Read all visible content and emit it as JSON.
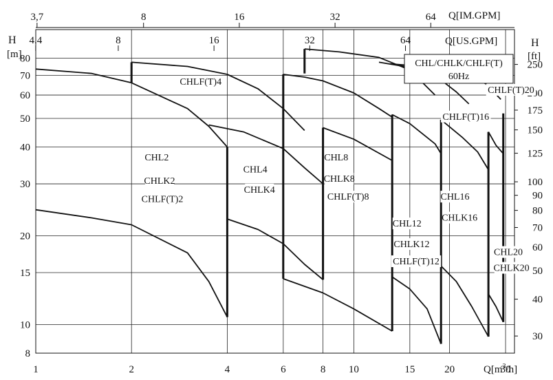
{
  "chart_data": {
    "type": "line",
    "title": "CHL/CHLK/CHLF(T)",
    "subtitle": "60Hz",
    "scale": "log-log",
    "grid": true,
    "x_bottom": {
      "label": "Q[m³/h]",
      "label_main": "Q[m",
      "label_sup": "3",
      "label_tail": "/h]",
      "ticks": [
        1,
        2,
        4,
        6,
        8,
        10,
        15,
        20,
        30
      ],
      "tick_labels": [
        "1",
        "2",
        "4",
        "6",
        "8",
        "10",
        "15",
        "20",
        "30"
      ]
    },
    "x_top_us": {
      "label": "Q[US.GPM]",
      "ticks": [
        4.4,
        8,
        16,
        32,
        64
      ],
      "tick_labels": [
        "4.4",
        "8",
        "16",
        "32",
        "64"
      ]
    },
    "x_top_im": {
      "label": "Q[IM.GPM]",
      "ticks": [
        3.7,
        8,
        16,
        32,
        64
      ],
      "tick_labels": [
        "3,7",
        "8",
        "16",
        "32",
        "64"
      ]
    },
    "y_left": {
      "label": "H",
      "unit": "[m]",
      "ylim": [
        8,
        100
      ],
      "ticks": [
        8,
        10,
        15,
        20,
        30,
        40,
        50,
        60,
        70,
        80
      ],
      "tick_labels": [
        "8",
        "10",
        "15",
        "20",
        "30",
        "40",
        "50",
        "60",
        "70",
        "80"
      ]
    },
    "y_right": {
      "label": "H",
      "unit": "[ft]",
      "ticks": [
        30,
        40,
        50,
        60,
        70,
        80,
        90,
        100,
        125,
        150,
        175,
        200,
        250
      ],
      "tick_labels": [
        "30",
        "40",
        "50",
        "60",
        "70",
        "80",
        "90",
        "100",
        "125",
        "150",
        "175",
        "200",
        "250"
      ]
    },
    "series": [
      {
        "curves": [
          [
            [
              1,
              24.5
            ],
            [
              1.5,
              23
            ],
            [
              2,
              21.8
            ],
            [
              3,
              17.5
            ],
            [
              3.5,
              14
            ],
            [
              4,
              10.6
            ]
          ],
          [
            [
              1,
              73.5
            ],
            [
              1.5,
              71
            ],
            [
              2,
              66
            ],
            [
              3,
              54
            ],
            [
              3.5,
              47
            ],
            [
              4,
              40
            ]
          ]
        ],
        "boundaries": [
          [
            [
              4,
              10.6
            ],
            [
              4,
              40
            ]
          ]
        ]
      },
      {
        "curves": [
          [
            [
              2,
              77.5
            ],
            [
              3,
              75
            ],
            [
              4,
              70.5
            ],
            [
              5,
              63
            ],
            [
              6,
              54
            ],
            [
              7,
              45.5
            ]
          ]
        ],
        "boundaries": [
          [
            [
              2,
              66
            ],
            [
              2,
              77.5
            ]
          ]
        ]
      },
      {
        "curves": [
          [
            [
              4,
              22.8
            ],
            [
              5,
              21
            ],
            [
              6,
              18.8
            ],
            [
              7,
              16
            ],
            [
              8,
              14.2
            ]
          ],
          [
            [
              3.5,
              47.5
            ],
            [
              4.5,
              45
            ],
            [
              6,
              39.5
            ],
            [
              7,
              34
            ],
            [
              8,
              30
            ]
          ]
        ],
        "boundaries": [
          [
            [
              8,
              14.2
            ],
            [
              8,
              46.5
            ]
          ]
        ]
      },
      {
        "curves": [
          [
            [
              6,
              70.5
            ],
            [
              7,
              69
            ],
            [
              8,
              67
            ],
            [
              10,
              61
            ],
            [
              12,
              54
            ],
            [
              13.2,
              50.5
            ]
          ],
          [
            [
              6,
              14.3
            ],
            [
              8,
              12.8
            ],
            [
              10,
              11.3
            ],
            [
              13.2,
              9.5
            ]
          ],
          [
            [
              8,
              46.5
            ],
            [
              10,
              42.5
            ],
            [
              13.2,
              36
            ]
          ]
        ],
        "boundaries": [
          [
            [
              6,
              14.3
            ],
            [
              6,
              70.5
            ]
          ],
          [
            [
              13.2,
              9.5
            ],
            [
              13.2,
              51.5
            ]
          ]
        ]
      },
      {
        "curves": [
          [
            [
              7,
              86
            ],
            [
              9,
              84
            ],
            [
              12,
              80.5
            ],
            [
              15,
              73
            ],
            [
              18,
              60
            ]
          ],
          [
            [
              13.2,
              14.5
            ],
            [
              15,
              13.2
            ],
            [
              17,
              11.3
            ],
            [
              18.8,
              8.6
            ]
          ],
          [
            [
              13.2,
              51.5
            ],
            [
              15,
              48
            ],
            [
              18,
              41
            ],
            [
              18.8,
              38
            ]
          ]
        ],
        "boundaries": [
          [
            [
              7,
              71
            ],
            [
              7,
              86
            ]
          ],
          [
            [
              18.8,
              8.6
            ],
            [
              18.8,
              49.5
            ]
          ]
        ]
      },
      {
        "curves": [
          [
            [
              12,
              77.5
            ],
            [
              15,
              74.5
            ],
            [
              18,
              70
            ],
            [
              21,
              61.5
            ],
            [
              23,
              56
            ]
          ],
          [
            [
              18.8,
              15.8
            ],
            [
              21,
              14
            ],
            [
              23.5,
              11.5
            ],
            [
              26.5,
              9.1
            ]
          ],
          [
            [
              18.8,
              49.5
            ],
            [
              22,
              43
            ],
            [
              24.5,
              38.5
            ],
            [
              26.5,
              33.5
            ]
          ]
        ],
        "boundaries": [
          [
            [
              26.5,
              9.1
            ],
            [
              26.5,
              45
            ]
          ]
        ]
      },
      {
        "curves": [
          [
            [
              13,
              76.5
            ],
            [
              18,
              74.5
            ],
            [
              22,
              71
            ],
            [
              26,
              65.5
            ],
            [
              29,
              58
            ]
          ],
          [
            [
              26.5,
              12.7
            ],
            [
              28,
              11.5
            ],
            [
              29.5,
              10.2
            ]
          ],
          [
            [
              26.5,
              45
            ],
            [
              28,
              40.5
            ],
            [
              29.5,
              38
            ]
          ]
        ],
        "boundaries": [
          [
            [
              29.5,
              10.2
            ],
            [
              29.5,
              52
            ]
          ]
        ]
      }
    ],
    "labels": [
      {
        "text": "CHLF(T)4",
        "x": 3.3,
        "y": 65
      },
      {
        "text": "CHL2",
        "x": 2.4,
        "y": 36
      },
      {
        "text": "CHLK2",
        "x": 2.45,
        "y": 30
      },
      {
        "text": "CHLF(T)2",
        "x": 2.5,
        "y": 26
      },
      {
        "text": "CHL4",
        "x": 4.9,
        "y": 32.8
      },
      {
        "text": "CHLK4",
        "x": 5.05,
        "y": 28
      },
      {
        "text": "CHL8",
        "x": 8.8,
        "y": 36
      },
      {
        "text": "CHLK8",
        "x": 9.0,
        "y": 30.5
      },
      {
        "text": "CHLF(T)8",
        "x": 9.6,
        "y": 26.5
      },
      {
        "text": "CHL12",
        "x": 14.7,
        "y": 21.5
      },
      {
        "text": "CHLK12",
        "x": 15.2,
        "y": 18.3
      },
      {
        "text": "CHLF(T)12",
        "x": 15.7,
        "y": 16
      },
      {
        "text": "CHL16",
        "x": 20.8,
        "y": 26.5
      },
      {
        "text": "CHLK16",
        "x": 21.5,
        "y": 22.5
      },
      {
        "text": "CHLF(T)16",
        "x": 22.5,
        "y": 49.5
      },
      {
        "text": "CHLF(T)20",
        "x": 31.2,
        "y": 61
      },
      {
        "text": "CHL20",
        "x": 30.6,
        "y": 17.2
      },
      {
        "text": "CHLK20",
        "x": 31.3,
        "y": 15.2
      }
    ]
  }
}
